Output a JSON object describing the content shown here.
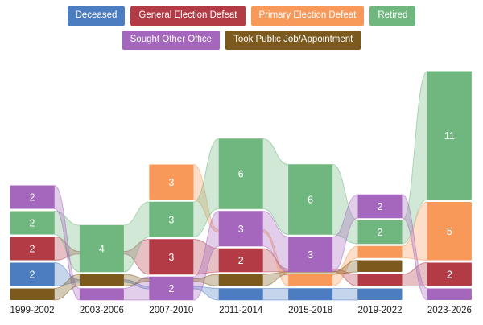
{
  "legend": {
    "items": [
      {
        "label": "Deceased",
        "color": "#4c7dc1"
      },
      {
        "label": "General Election Defeat",
        "color": "#b23b46"
      },
      {
        "label": "Primary Election Defeat",
        "color": "#f8995a"
      },
      {
        "label": "Retired",
        "color": "#70b67f"
      },
      {
        "label": "Sought Other Office",
        "color": "#a566bd"
      },
      {
        "label": "Took Public Job/Appointment",
        "color": "#7c5a1d"
      }
    ]
  },
  "chart_data": {
    "type": "area",
    "variant": "stream-bump-alluvial",
    "title": "",
    "xlabel": "",
    "ylabel": "",
    "grid": false,
    "legend_position": "top",
    "value_label_min": 2,
    "text_colors": {
      "axis": "#1a1a1a",
      "node_value": "#ffffff"
    },
    "categories": [
      "1999-2002",
      "2003-2006",
      "2007-2010",
      "2011-2014",
      "2015-2018",
      "2019-2022",
      "2023-2026"
    ],
    "series": [
      {
        "name": "Deceased",
        "color": "#4c7dc1",
        "values": [
          2,
          0,
          0,
          1,
          1,
          1,
          0
        ]
      },
      {
        "name": "General Election Defeat",
        "color": "#b23b46",
        "values": [
          2,
          0,
          3,
          2,
          0,
          1,
          2
        ]
      },
      {
        "name": "Primary Election Defeat",
        "color": "#f8995a",
        "values": [
          0,
          0,
          3,
          0,
          1,
          1,
          5
        ]
      },
      {
        "name": "Retired",
        "color": "#70b67f",
        "values": [
          2,
          4,
          3,
          6,
          6,
          2,
          11
        ]
      },
      {
        "name": "Sought Other Office",
        "color": "#a566bd",
        "values": [
          2,
          1,
          2,
          3,
          3,
          2,
          1
        ]
      },
      {
        "name": "Took Public Job/Appointment",
        "color": "#7c5a1d",
        "values": [
          1,
          1,
          0,
          1,
          0,
          1,
          0
        ]
      }
    ],
    "columns": [
      {
        "period": "1999-2002",
        "total": 9,
        "nodes": [
          {
            "series": "Sought Other Office",
            "value": 2
          },
          {
            "series": "Retired",
            "value": 2
          },
          {
            "series": "General Election Defeat",
            "value": 2
          },
          {
            "series": "Deceased",
            "value": 2
          },
          {
            "series": "Took Public Job/Appointment",
            "value": 1
          }
        ]
      },
      {
        "period": "2003-2006",
        "total": 6,
        "nodes": [
          {
            "series": "Retired",
            "value": 4
          },
          {
            "series": "Took Public Job/Appointment",
            "value": 1
          },
          {
            "series": "Sought Other Office",
            "value": 1
          }
        ]
      },
      {
        "period": "2007-2010",
        "total": 11,
        "nodes": [
          {
            "series": "Primary Election Defeat",
            "value": 3
          },
          {
            "series": "Retired",
            "value": 3
          },
          {
            "series": "General Election Defeat",
            "value": 3
          },
          {
            "series": "Sought Other Office",
            "value": 2
          }
        ]
      },
      {
        "period": "2011-2014",
        "total": 13,
        "nodes": [
          {
            "series": "Retired",
            "value": 6
          },
          {
            "series": "Sought Other Office",
            "value": 3
          },
          {
            "series": "General Election Defeat",
            "value": 2
          },
          {
            "series": "Took Public Job/Appointment",
            "value": 1
          },
          {
            "series": "Deceased",
            "value": 1
          }
        ]
      },
      {
        "period": "2015-2018",
        "total": 11,
        "nodes": [
          {
            "series": "Retired",
            "value": 6
          },
          {
            "series": "Sought Other Office",
            "value": 3
          },
          {
            "series": "Primary Election Defeat",
            "value": 1
          },
          {
            "series": "Deceased",
            "value": 1
          }
        ]
      },
      {
        "period": "2019-2022",
        "total": 8,
        "nodes": [
          {
            "series": "Sought Other Office",
            "value": 2
          },
          {
            "series": "Retired",
            "value": 2
          },
          {
            "series": "Primary Election Defeat",
            "value": 1
          },
          {
            "series": "Took Public Job/Appointment",
            "value": 1
          },
          {
            "series": "General Election Defeat",
            "value": 1
          },
          {
            "series": "Deceased",
            "value": 1
          }
        ]
      },
      {
        "period": "2023-2026",
        "total": 19,
        "nodes": [
          {
            "series": "Retired",
            "value": 11
          },
          {
            "series": "Primary Election Defeat",
            "value": 5
          },
          {
            "series": "General Election Defeat",
            "value": 2
          },
          {
            "series": "Sought Other Office",
            "value": 1
          }
        ]
      }
    ]
  }
}
